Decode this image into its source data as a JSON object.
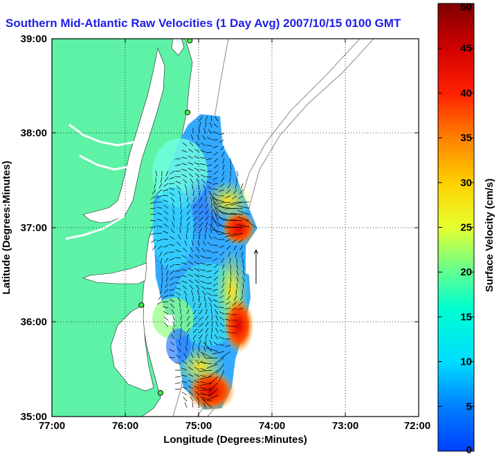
{
  "title": "Southern Mid-Atlantic Raw Velocities (1 Day Avg) 2007/10/15 0100 GMT",
  "map": {
    "x_axis_label": "Longitude (Degrees:Minutes)",
    "y_axis_label": "Latitude (Degrees:Minutes)",
    "x_ticks": [
      "77:00",
      "76:00",
      "75:00",
      "74:00",
      "73:00",
      "72:00"
    ],
    "y_ticks": [
      "39:00",
      "38:00",
      "37:00",
      "36:00",
      "35:00"
    ],
    "x_range": [
      -77,
      -72
    ],
    "y_range": [
      35,
      39
    ],
    "land_color": "#5ef2a6",
    "grid": "dotted"
  },
  "colorbar": {
    "label": "Surface Velocity (cm/s)",
    "min": 0,
    "max": 50,
    "ticks": [
      "0",
      "5",
      "10",
      "15",
      "20",
      "25",
      "30",
      "35",
      "40",
      "45",
      "50"
    ]
  },
  "chart_data": {
    "type": "heatmap",
    "title": "Southern Mid-Atlantic Raw Velocities (1 Day Avg) 2007/10/15 0100 GMT",
    "xlabel": "Longitude (Degrees:Minutes)",
    "ylabel": "Latitude (Degrees:Minutes)",
    "xlim": [
      -77,
      -72
    ],
    "ylim": [
      35,
      39
    ],
    "colorbar_label": "Surface Velocity (cm/s)",
    "colorbar_range": [
      0,
      50
    ],
    "stations": [
      {
        "lon": -75.12,
        "lat": 38.98
      },
      {
        "lon": -75.15,
        "lat": 38.22
      },
      {
        "lon": -75.78,
        "lat": 36.18
      },
      {
        "lon": -75.52,
        "lat": 35.25
      }
    ]
  }
}
